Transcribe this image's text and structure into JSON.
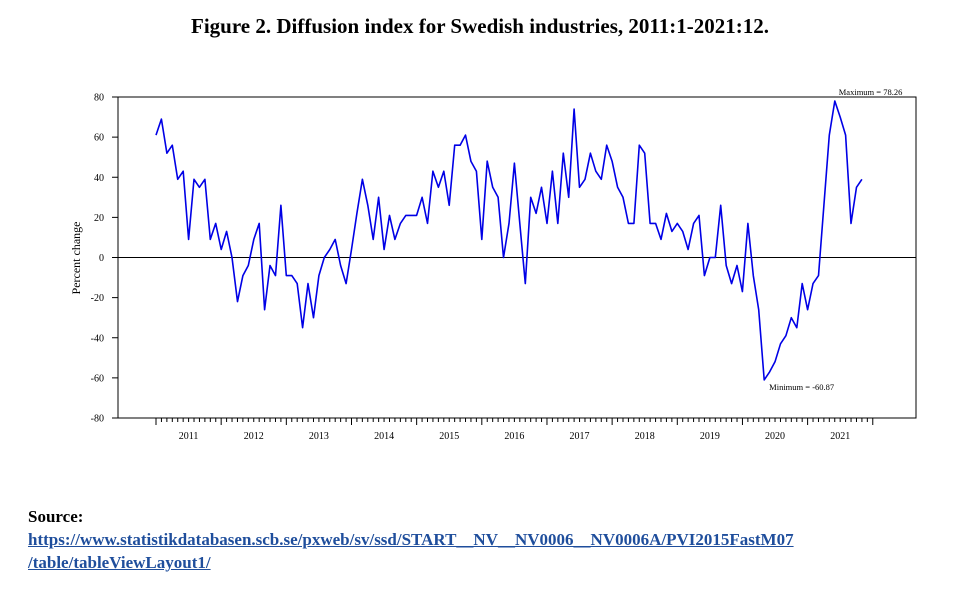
{
  "figure": {
    "title": "Figure 2. Diffusion index for Swedish industries, 2011:1-2021:12."
  },
  "source": {
    "label": "Source:",
    "link_line1": "https://www.statistikdatabasen.scb.se/pxweb/sv/ssd/START__NV__NV0006__NV0006A/PVI2015FastM07",
    "link_line2": "/table/tableViewLayout1/"
  },
  "colors": {
    "line": "#0000e6",
    "axis": "#000000",
    "link": "#1f4e9c"
  },
  "chart_data": {
    "type": "line",
    "title": "",
    "xlabel": "",
    "ylabel": "Percent change",
    "ylim": [
      -80,
      80
    ],
    "yticks": [
      -80,
      -60,
      -40,
      -20,
      0,
      20,
      40,
      60,
      80
    ],
    "xlim_months": [
      0,
      143
    ],
    "year_labels": [
      "2011",
      "2012",
      "2013",
      "2014",
      "2015",
      "2016",
      "2017",
      "2018",
      "2019",
      "2020",
      "2021"
    ],
    "grid": false,
    "zero_line": true,
    "annotations": [
      {
        "label": "Maximum =",
        "value": "78.26"
      },
      {
        "label": "Minimum =",
        "value": "-60.87"
      }
    ],
    "series": [
      {
        "values": [
          61,
          69,
          52,
          56,
          39,
          43,
          9,
          39,
          35,
          39,
          9,
          17,
          4,
          13,
          0,
          -22,
          -9,
          -4,
          9,
          17,
          -26,
          -4,
          -9,
          26,
          -9,
          -9,
          -13,
          -35,
          -13,
          -30,
          -9,
          0,
          4,
          9,
          -4,
          -13,
          4,
          22,
          39,
          26,
          9,
          30,
          4,
          21,
          9,
          17,
          21,
          21,
          21,
          30,
          17,
          43,
          35,
          43,
          26,
          56,
          56,
          61,
          48,
          43,
          9,
          48,
          35,
          30,
          0,
          17,
          47,
          17,
          -13,
          30,
          22,
          35,
          17,
          43,
          17,
          52,
          30,
          74,
          35,
          39,
          52,
          43,
          39,
          56,
          48,
          35,
          30,
          17,
          17,
          56,
          52,
          17,
          17,
          9,
          22,
          13,
          17,
          13,
          4,
          17,
          21,
          -9,
          0,
          0,
          26,
          -4,
          -13,
          -4,
          -17,
          17,
          -9,
          -26,
          -61,
          -57,
          -52,
          -43,
          -39,
          -30,
          -35,
          -13,
          -26,
          -13,
          -9,
          26,
          61,
          78,
          70,
          61,
          17,
          35,
          39
        ]
      }
    ]
  }
}
